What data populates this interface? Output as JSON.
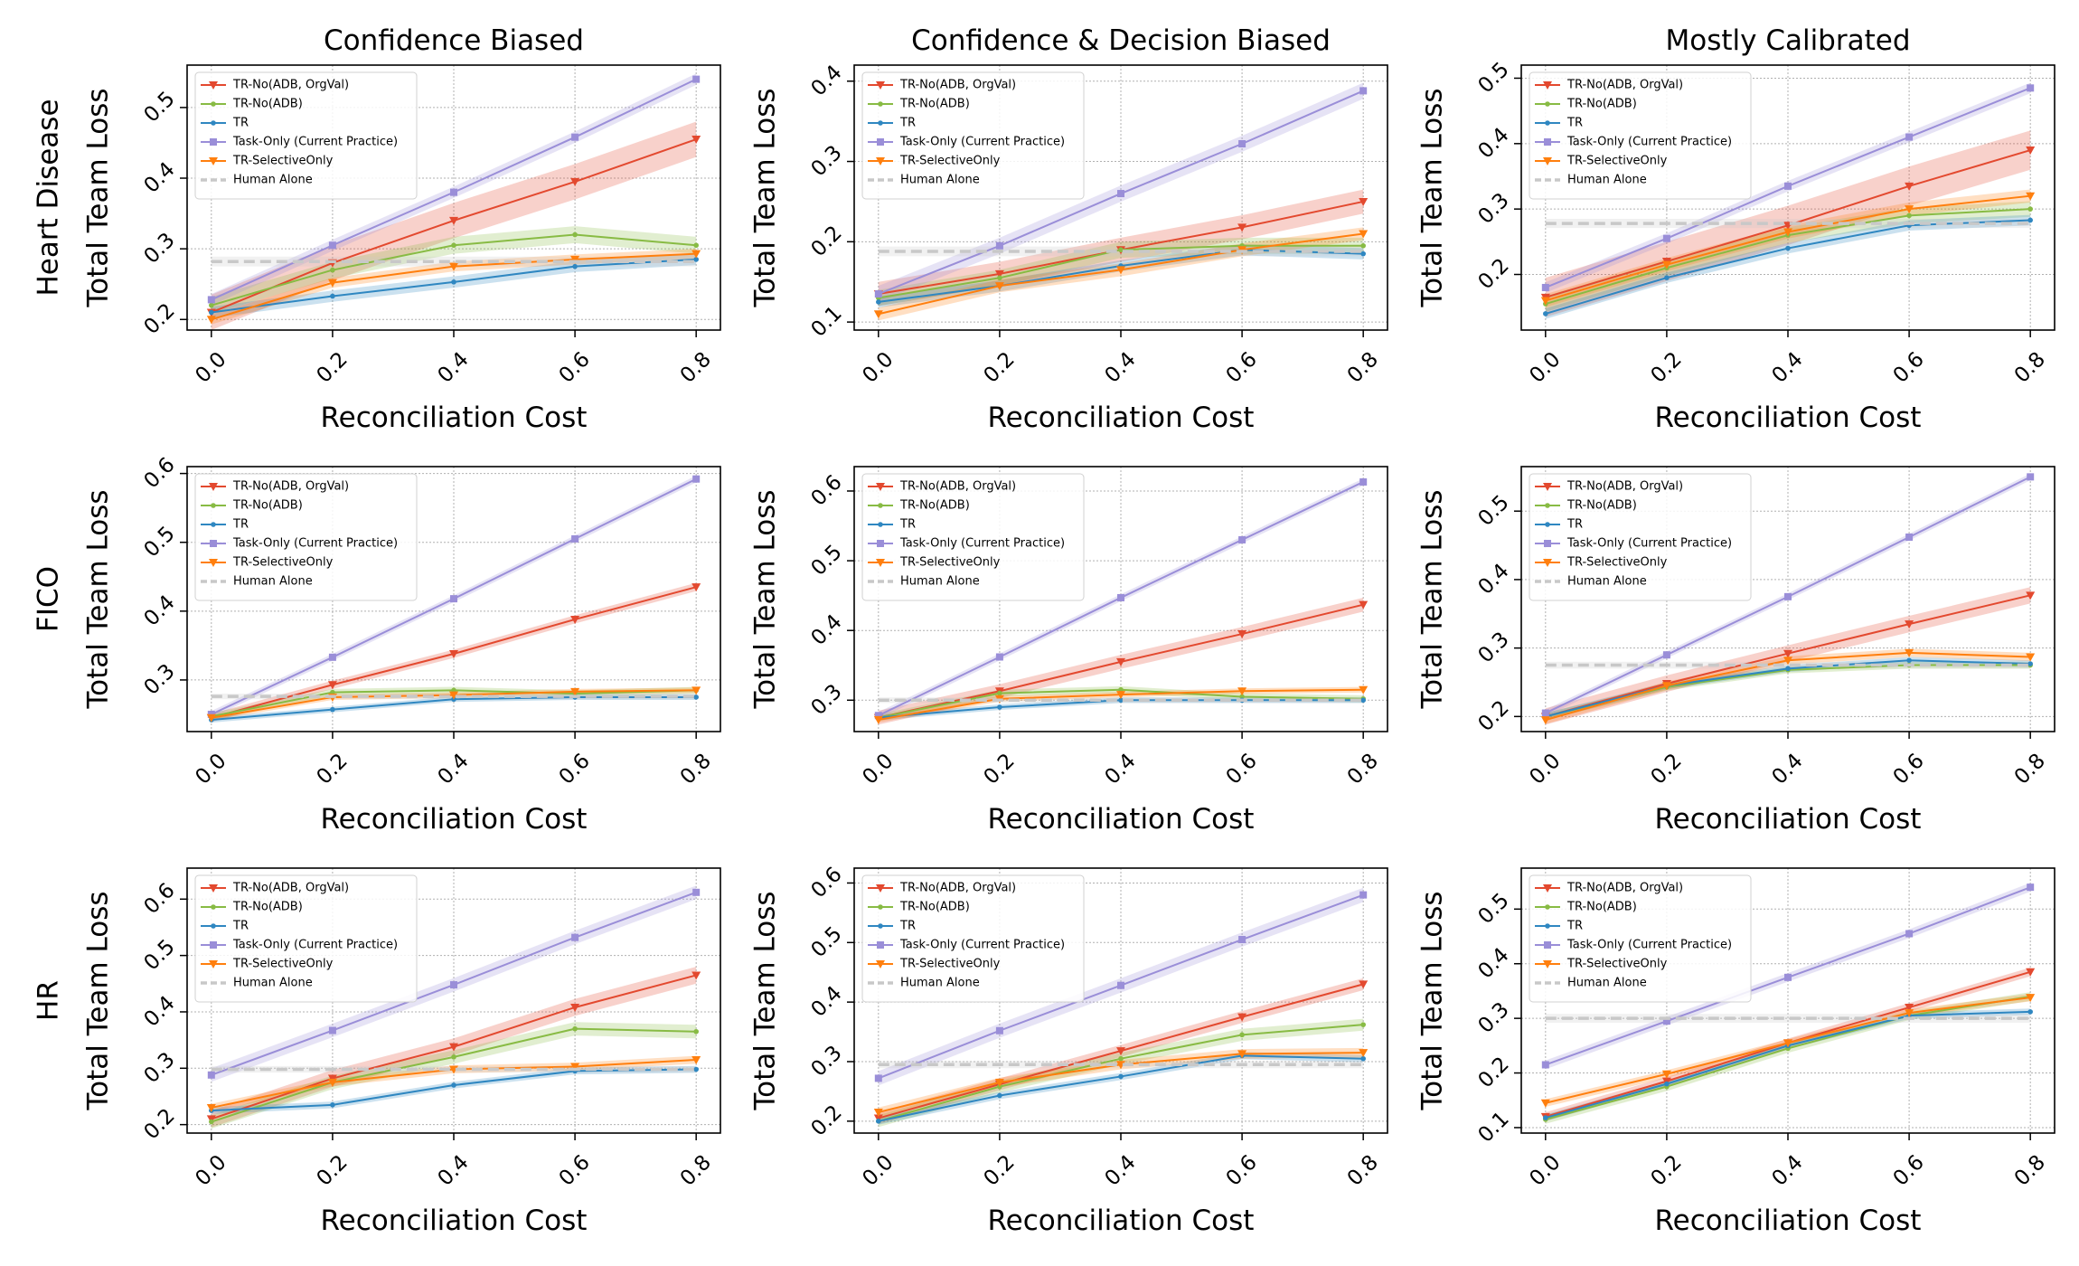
{
  "figure": {
    "column_titles": [
      "Confidence Biased",
      "Confidence & Decision Biased",
      "Mostly Calibrated"
    ],
    "row_labels": [
      "Heart Disease",
      "FICO",
      "HR"
    ]
  },
  "colors": {
    "TR-No(ADB, OrgVal)": "#e3492f",
    "TR-No(ADB)": "#88bb44",
    "TR": "#2f87c1",
    "Task-Only (Current Practice)": "#9a8ed8",
    "TR-SelectiveOnly": "#ff7f0e",
    "Human Alone": "#c8c8c8"
  },
  "chart_data": [
    {
      "type": "line",
      "title": "Confidence Biased",
      "row_label": "Heart Disease",
      "xlabel": "Reconciliation Cost",
      "ylabel": "Total Team Loss",
      "x": [
        0.0,
        0.2,
        0.4,
        0.6,
        0.8
      ],
      "x_ticks": [
        "0.0",
        "0.2",
        "0.4",
        "0.6",
        "0.8"
      ],
      "ylim": [
        0.185,
        0.56
      ],
      "y_ticks": [
        "0.2",
        "0.3",
        "0.4",
        "0.5"
      ],
      "grid": true,
      "legend_position": "top-left",
      "series": [
        {
          "name": "TR-No(ADB, OrgVal)",
          "values": [
            0.21,
            0.28,
            0.34,
            0.395,
            0.455
          ],
          "band": 0.025,
          "marker": "triangle-down"
        },
        {
          "name": "TR-No(ADB)",
          "values": [
            0.22,
            0.27,
            0.305,
            0.32,
            0.305
          ],
          "band": 0.012,
          "marker": "circle"
        },
        {
          "name": "TR",
          "values": [
            0.21,
            0.233,
            0.253,
            0.275,
            0.285
          ],
          "band": 0.008,
          "marker": "circle"
        },
        {
          "name": "Task-Only (Current Practice)",
          "values": [
            0.228,
            0.305,
            0.38,
            0.458,
            0.54
          ],
          "band": 0.008,
          "marker": "square"
        },
        {
          "name": "TR-SelectiveOnly",
          "values": [
            0.2,
            0.252,
            0.275,
            0.285,
            0.293
          ],
          "band": 0.007,
          "marker": "triangle-down"
        },
        {
          "name": "Human Alone",
          "values": [
            0.282,
            0.282,
            0.282,
            0.282,
            0.282
          ],
          "band": 0.007,
          "marker": "none",
          "dashed": true
        }
      ]
    },
    {
      "type": "line",
      "title": "Confidence & Decision Biased",
      "row_label": "Heart Disease",
      "xlabel": "Reconciliation Cost",
      "ylabel": "Total Team Loss",
      "x": [
        0.0,
        0.2,
        0.4,
        0.6,
        0.8
      ],
      "x_ticks": [
        "0.0",
        "0.2",
        "0.4",
        "0.6",
        "0.8"
      ],
      "ylim": [
        0.09,
        0.42
      ],
      "y_ticks": [
        "0.1",
        "0.2",
        "0.3",
        "0.4"
      ],
      "grid": true,
      "legend_position": "top-left",
      "series": [
        {
          "name": "TR-No(ADB, OrgVal)",
          "values": [
            0.135,
            0.16,
            0.19,
            0.218,
            0.25
          ],
          "band": 0.015,
          "marker": "triangle-down"
        },
        {
          "name": "TR-No(ADB)",
          "values": [
            0.13,
            0.155,
            0.19,
            0.195,
            0.195
          ],
          "band": 0.01,
          "marker": "circle"
        },
        {
          "name": "TR",
          "values": [
            0.125,
            0.145,
            0.17,
            0.19,
            0.185
          ],
          "band": 0.007,
          "marker": "circle"
        },
        {
          "name": "Task-Only (Current Practice)",
          "values": [
            0.135,
            0.195,
            0.26,
            0.322,
            0.388
          ],
          "band": 0.01,
          "marker": "square"
        },
        {
          "name": "TR-SelectiveOnly",
          "values": [
            0.11,
            0.145,
            0.165,
            0.19,
            0.21
          ],
          "band": 0.008,
          "marker": "triangle-down"
        },
        {
          "name": "Human Alone",
          "values": [
            0.188,
            0.188,
            0.188,
            0.188,
            0.188
          ],
          "band": 0.006,
          "marker": "none",
          "dashed": true
        }
      ]
    },
    {
      "type": "line",
      "title": "Mostly Calibrated",
      "row_label": "Heart Disease",
      "xlabel": "Reconciliation Cost",
      "ylabel": "Total Team Loss",
      "x": [
        0.0,
        0.2,
        0.4,
        0.6,
        0.8
      ],
      "x_ticks": [
        "0.0",
        "0.2",
        "0.4",
        "0.6",
        "0.8"
      ],
      "ylim": [
        0.115,
        0.52
      ],
      "y_ticks": [
        "0.2",
        "0.3",
        "0.4",
        "0.5"
      ],
      "grid": true,
      "legend_position": "top-left",
      "series": [
        {
          "name": "TR-No(ADB, OrgVal)",
          "values": [
            0.165,
            0.22,
            0.275,
            0.335,
            0.39
          ],
          "band": 0.03,
          "marker": "triangle-down"
        },
        {
          "name": "TR-No(ADB)",
          "values": [
            0.155,
            0.21,
            0.26,
            0.29,
            0.3
          ],
          "band": 0.012,
          "marker": "circle"
        },
        {
          "name": "TR",
          "values": [
            0.14,
            0.195,
            0.24,
            0.275,
            0.283
          ],
          "band": 0.008,
          "marker": "circle"
        },
        {
          "name": "Task-Only (Current Practice)",
          "values": [
            0.18,
            0.255,
            0.335,
            0.41,
            0.485
          ],
          "band": 0.008,
          "marker": "square"
        },
        {
          "name": "TR-SelectiveOnly",
          "values": [
            0.16,
            0.215,
            0.265,
            0.3,
            0.32
          ],
          "band": 0.01,
          "marker": "triangle-down"
        },
        {
          "name": "Human Alone",
          "values": [
            0.278,
            0.278,
            0.278,
            0.278,
            0.278
          ],
          "band": 0.007,
          "marker": "none",
          "dashed": true
        }
      ]
    },
    {
      "type": "line",
      "title": "",
      "row_label": "FICO",
      "xlabel": "Reconciliation Cost",
      "ylabel": "Total Team Loss",
      "x": [
        0.0,
        0.2,
        0.4,
        0.6,
        0.8
      ],
      "x_ticks": [
        "0.0",
        "0.2",
        "0.4",
        "0.6",
        "0.8"
      ],
      "ylim": [
        0.225,
        0.61
      ],
      "y_ticks": [
        "0.3",
        "0.4",
        "0.5",
        "0.6"
      ],
      "grid": true,
      "legend_position": "top-left",
      "series": [
        {
          "name": "TR-No(ADB, OrgVal)",
          "values": [
            0.245,
            0.293,
            0.338,
            0.388,
            0.435
          ],
          "band": 0.006,
          "marker": "triangle-down"
        },
        {
          "name": "TR-No(ADB)",
          "values": [
            0.247,
            0.282,
            0.285,
            0.28,
            0.285
          ],
          "band": 0.005,
          "marker": "circle"
        },
        {
          "name": "TR",
          "values": [
            0.242,
            0.257,
            0.272,
            0.275,
            0.275
          ],
          "band": 0.004,
          "marker": "circle"
        },
        {
          "name": "Task-Only (Current Practice)",
          "values": [
            0.25,
            0.333,
            0.418,
            0.505,
            0.592
          ],
          "band": 0.005,
          "marker": "square"
        },
        {
          "name": "TR-SelectiveOnly",
          "values": [
            0.245,
            0.275,
            0.278,
            0.283,
            0.285
          ],
          "band": 0.004,
          "marker": "triangle-down"
        },
        {
          "name": "Human Alone",
          "values": [
            0.276,
            0.276,
            0.276,
            0.276,
            0.276
          ],
          "band": 0.004,
          "marker": "none",
          "dashed": true
        }
      ]
    },
    {
      "type": "line",
      "title": "",
      "row_label": "FICO",
      "xlabel": "Reconciliation Cost",
      "ylabel": "Total Team Loss",
      "x": [
        0.0,
        0.2,
        0.4,
        0.6,
        0.8
      ],
      "x_ticks": [
        "0.0",
        "0.2",
        "0.4",
        "0.6",
        "0.8"
      ],
      "ylim": [
        0.255,
        0.635
      ],
      "y_ticks": [
        "0.3",
        "0.4",
        "0.5",
        "0.6"
      ],
      "grid": true,
      "legend_position": "top-left",
      "series": [
        {
          "name": "TR-No(ADB, OrgVal)",
          "values": [
            0.275,
            0.313,
            0.355,
            0.395,
            0.437
          ],
          "band": 0.01,
          "marker": "triangle-down"
        },
        {
          "name": "TR-No(ADB)",
          "values": [
            0.275,
            0.31,
            0.315,
            0.305,
            0.302
          ],
          "band": 0.005,
          "marker": "circle"
        },
        {
          "name": "TR",
          "values": [
            0.275,
            0.29,
            0.3,
            0.3,
            0.3
          ],
          "band": 0.004,
          "marker": "circle"
        },
        {
          "name": "Task-Only (Current Practice)",
          "values": [
            0.278,
            0.362,
            0.447,
            0.53,
            0.613
          ],
          "band": 0.005,
          "marker": "square"
        },
        {
          "name": "TR-SelectiveOnly",
          "values": [
            0.272,
            0.302,
            0.308,
            0.313,
            0.315
          ],
          "band": 0.004,
          "marker": "triangle-down"
        },
        {
          "name": "Human Alone",
          "values": [
            0.3,
            0.3,
            0.3,
            0.3,
            0.3
          ],
          "band": 0.004,
          "marker": "none",
          "dashed": true
        }
      ]
    },
    {
      "type": "line",
      "title": "",
      "row_label": "FICO",
      "xlabel": "Reconciliation Cost",
      "ylabel": "Total Team Loss",
      "x": [
        0.0,
        0.2,
        0.4,
        0.6,
        0.8
      ],
      "x_ticks": [
        "0.0",
        "0.2",
        "0.4",
        "0.6",
        "0.8"
      ],
      "ylim": [
        0.178,
        0.565
      ],
      "y_ticks": [
        "0.2",
        "0.3",
        "0.4",
        "0.5"
      ],
      "grid": true,
      "legend_position": "top-left",
      "series": [
        {
          "name": "TR-No(ADB, OrgVal)",
          "values": [
            0.2,
            0.248,
            0.292,
            0.335,
            0.377
          ],
          "band": 0.012,
          "marker": "triangle-down"
        },
        {
          "name": "TR-No(ADB)",
          "values": [
            0.2,
            0.243,
            0.268,
            0.275,
            0.275
          ],
          "band": 0.005,
          "marker": "circle"
        },
        {
          "name": "TR",
          "values": [
            0.2,
            0.245,
            0.27,
            0.282,
            0.277
          ],
          "band": 0.005,
          "marker": "circle"
        },
        {
          "name": "Task-Only (Current Practice)",
          "values": [
            0.205,
            0.29,
            0.375,
            0.462,
            0.55
          ],
          "band": 0.005,
          "marker": "square"
        },
        {
          "name": "TR-SelectiveOnly",
          "values": [
            0.195,
            0.245,
            0.282,
            0.293,
            0.287
          ],
          "band": 0.006,
          "marker": "triangle-down"
        },
        {
          "name": "Human Alone",
          "values": [
            0.275,
            0.275,
            0.275,
            0.275,
            0.275
          ],
          "band": 0.005,
          "marker": "none",
          "dashed": true
        }
      ]
    },
    {
      "type": "line",
      "title": "",
      "row_label": "HR",
      "xlabel": "Reconciliation Cost",
      "ylabel": "Total Team Loss",
      "x": [
        0.0,
        0.2,
        0.4,
        0.6,
        0.8
      ],
      "x_ticks": [
        "0.0",
        "0.2",
        "0.4",
        "0.6",
        "0.8"
      ],
      "ylim": [
        0.185,
        0.655
      ],
      "y_ticks": [
        "0.2",
        "0.3",
        "0.4",
        "0.5",
        "0.6"
      ],
      "grid": true,
      "legend_position": "top-left",
      "series": [
        {
          "name": "TR-No(ADB, OrgVal)",
          "values": [
            0.21,
            0.282,
            0.338,
            0.408,
            0.465
          ],
          "band": 0.015,
          "marker": "triangle-down"
        },
        {
          "name": "TR-No(ADB)",
          "values": [
            0.205,
            0.275,
            0.32,
            0.37,
            0.365
          ],
          "band": 0.012,
          "marker": "circle"
        },
        {
          "name": "TR",
          "values": [
            0.225,
            0.235,
            0.27,
            0.295,
            0.298
          ],
          "band": 0.006,
          "marker": "circle"
        },
        {
          "name": "Task-Only (Current Practice)",
          "values": [
            0.288,
            0.367,
            0.448,
            0.532,
            0.612
          ],
          "band": 0.012,
          "marker": "square"
        },
        {
          "name": "TR-SelectiveOnly",
          "values": [
            0.23,
            0.275,
            0.298,
            0.303,
            0.315
          ],
          "band": 0.007,
          "marker": "triangle-down"
        },
        {
          "name": "Human Alone",
          "values": [
            0.298,
            0.298,
            0.298,
            0.298,
            0.298
          ],
          "band": 0.006,
          "marker": "none",
          "dashed": true
        }
      ]
    },
    {
      "type": "line",
      "title": "",
      "row_label": "HR",
      "xlabel": "Reconciliation Cost",
      "ylabel": "Total Team Loss",
      "x": [
        0.0,
        0.2,
        0.4,
        0.6,
        0.8
      ],
      "x_ticks": [
        "0.0",
        "0.2",
        "0.4",
        "0.6",
        "0.8"
      ],
      "ylim": [
        0.18,
        0.625
      ],
      "y_ticks": [
        "0.2",
        "0.3",
        "0.4",
        "0.5",
        "0.6"
      ],
      "grid": true,
      "legend_position": "top-left",
      "series": [
        {
          "name": "TR-No(ADB, OrgVal)",
          "values": [
            0.205,
            0.262,
            0.318,
            0.375,
            0.43
          ],
          "band": 0.01,
          "marker": "triangle-down"
        },
        {
          "name": "TR-No(ADB)",
          "values": [
            0.2,
            0.258,
            0.305,
            0.345,
            0.362
          ],
          "band": 0.01,
          "marker": "circle"
        },
        {
          "name": "TR",
          "values": [
            0.2,
            0.243,
            0.275,
            0.31,
            0.305
          ],
          "band": 0.006,
          "marker": "circle"
        },
        {
          "name": "Task-Only (Current Practice)",
          "values": [
            0.272,
            0.352,
            0.428,
            0.505,
            0.58
          ],
          "band": 0.012,
          "marker": "square"
        },
        {
          "name": "TR-SelectiveOnly",
          "values": [
            0.215,
            0.265,
            0.295,
            0.313,
            0.315
          ],
          "band": 0.008,
          "marker": "triangle-down"
        },
        {
          "name": "Human Alone",
          "values": [
            0.295,
            0.295,
            0.295,
            0.295,
            0.295
          ],
          "band": 0.006,
          "marker": "none",
          "dashed": true
        }
      ]
    },
    {
      "type": "line",
      "title": "",
      "row_label": "HR",
      "xlabel": "Reconciliation Cost",
      "ylabel": "Total Team Loss",
      "x": [
        0.0,
        0.2,
        0.4,
        0.6,
        0.8
      ],
      "x_ticks": [
        "0.0",
        "0.2",
        "0.4",
        "0.6",
        "0.8"
      ],
      "ylim": [
        0.09,
        0.575
      ],
      "y_ticks": [
        "0.1",
        "0.2",
        "0.3",
        "0.4",
        "0.5"
      ],
      "grid": true,
      "legend_position": "top-left",
      "series": [
        {
          "name": "TR-No(ADB, OrgVal)",
          "values": [
            0.12,
            0.185,
            0.255,
            0.32,
            0.385
          ],
          "band": 0.008,
          "marker": "triangle-down"
        },
        {
          "name": "TR-No(ADB)",
          "values": [
            0.115,
            0.175,
            0.245,
            0.305,
            0.34
          ],
          "band": 0.008,
          "marker": "circle"
        },
        {
          "name": "TR",
          "values": [
            0.118,
            0.18,
            0.25,
            0.305,
            0.312
          ],
          "band": 0.006,
          "marker": "circle"
        },
        {
          "name": "Task-Only (Current Practice)",
          "values": [
            0.215,
            0.295,
            0.375,
            0.455,
            0.54
          ],
          "band": 0.008,
          "marker": "square"
        },
        {
          "name": "TR-SelectiveOnly",
          "values": [
            0.145,
            0.198,
            0.255,
            0.31,
            0.338
          ],
          "band": 0.007,
          "marker": "triangle-down"
        },
        {
          "name": "Human Alone",
          "values": [
            0.3,
            0.3,
            0.3,
            0.3,
            0.3
          ],
          "band": 0.008,
          "marker": "none",
          "dashed": true
        }
      ]
    }
  ]
}
